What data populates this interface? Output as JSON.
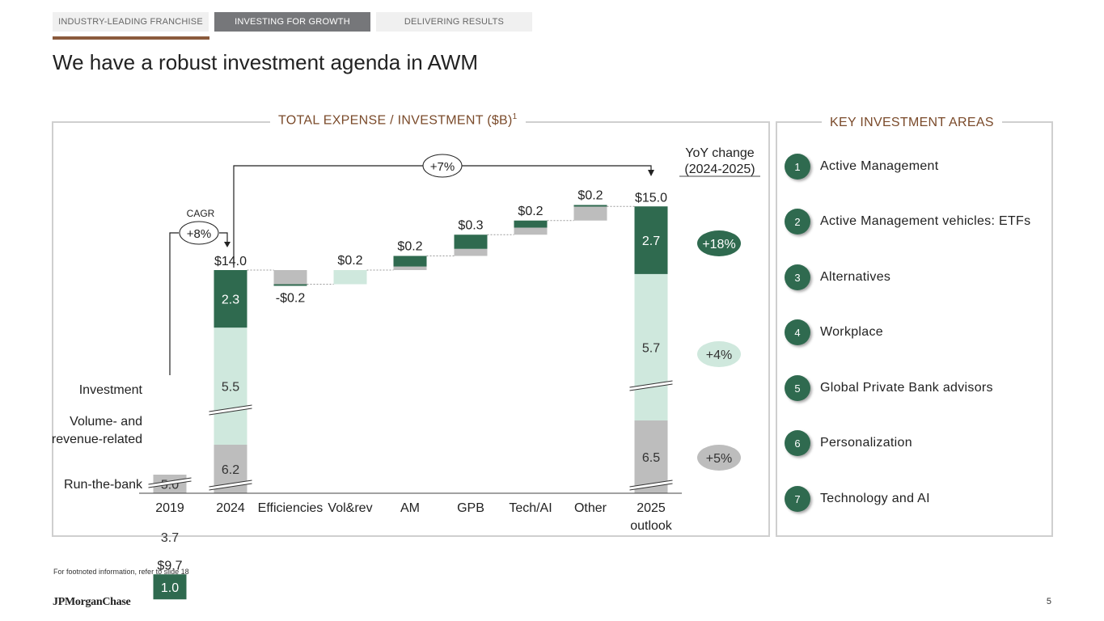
{
  "tabs": [
    {
      "label": "INDUSTRY-LEADING FRANCHISE",
      "active": false
    },
    {
      "label": "INVESTING FOR GROWTH",
      "active": true
    },
    {
      "label": "DELIVERING RESULTS",
      "active": false
    }
  ],
  "title": "We have a robust investment agenda in AWM",
  "left_panel": {
    "title": "TOTAL EXPENSE / INVESTMENT ($B)",
    "footnote_marker": "1"
  },
  "right_panel": {
    "title": "KEY INVESTMENT AREAS",
    "items": [
      {
        "num": "1",
        "label": "Active Management"
      },
      {
        "num": "2",
        "label": "Active Management vehicles: ETFs"
      },
      {
        "num": "3",
        "label": "Alternatives"
      },
      {
        "num": "4",
        "label": "Workplace"
      },
      {
        "num": "5",
        "label": "Global Private Bank advisors"
      },
      {
        "num": "6",
        "label": "Personalization"
      },
      {
        "num": "7",
        "label": "Technology and AI"
      }
    ]
  },
  "footnote": "For footnoted information, refer to slide 18",
  "logo": "JPMorganChase",
  "page_number": "5",
  "colors": {
    "investment": "#2f6a4f",
    "volume": "#cfe8dd",
    "run": "#bdbdbd",
    "accent": "#7a4a2a"
  },
  "chart_data": {
    "type": "bar",
    "subtype": "waterfall",
    "unit": "$B",
    "categories": [
      "2019",
      "2024",
      "Efficiencies",
      "Vol&rev",
      "AM",
      "GPB",
      "Tech/AI",
      "Other",
      "2025\noutlook"
    ],
    "segment_labels": [
      "Investment",
      "Volume- and revenue-related",
      "Run-the-bank"
    ],
    "stacked": [
      {
        "category": "2019",
        "run": 5.0,
        "volume": 3.7,
        "investment": 1.0,
        "total": "$9.7"
      },
      {
        "category": "2024",
        "run": 6.2,
        "volume": 5.5,
        "investment": 2.3,
        "total": "$14.0"
      },
      {
        "category": "2025\noutlook",
        "run": 6.5,
        "volume": 5.7,
        "investment": 2.7,
        "total": "$15.0"
      }
    ],
    "changes": [
      {
        "category": "Efficiencies",
        "value": -0.2,
        "label": "-$0.2",
        "segments": [
          {
            "part": "run",
            "value": -0.2
          },
          {
            "part": "investment",
            "value": 0.0
          }
        ]
      },
      {
        "category": "Vol&rev",
        "value": 0.2,
        "label": "$0.2",
        "segments": [
          {
            "part": "volume",
            "value": 0.2
          }
        ]
      },
      {
        "category": "AM",
        "value": 0.2,
        "label": "$0.2",
        "segments": [
          {
            "part": "run",
            "value": 0.05
          },
          {
            "part": "investment",
            "value": 0.15
          }
        ]
      },
      {
        "category": "GPB",
        "value": 0.3,
        "label": "$0.3",
        "segments": [
          {
            "part": "run",
            "value": 0.1
          },
          {
            "part": "investment",
            "value": 0.2
          }
        ]
      },
      {
        "category": "Tech/AI",
        "value": 0.2,
        "label": "$0.2",
        "segments": [
          {
            "part": "run",
            "value": 0.1
          },
          {
            "part": "investment",
            "value": 0.1
          }
        ]
      },
      {
        "category": "Other",
        "value": 0.2,
        "label": "$0.2",
        "segments": [
          {
            "part": "run",
            "value": 0.2
          },
          {
            "part": "investment",
            "value": 0.02
          }
        ]
      }
    ],
    "cagr_label": "CAGR",
    "cagr_value": "+8%",
    "growth_value": "+7%",
    "yoy_title": "YoY change (2024-2025)",
    "yoy": [
      {
        "segment": "investment",
        "label": "+18%"
      },
      {
        "segment": "volume",
        "label": "+4%"
      },
      {
        "segment": "run",
        "label": "+5%"
      }
    ]
  }
}
